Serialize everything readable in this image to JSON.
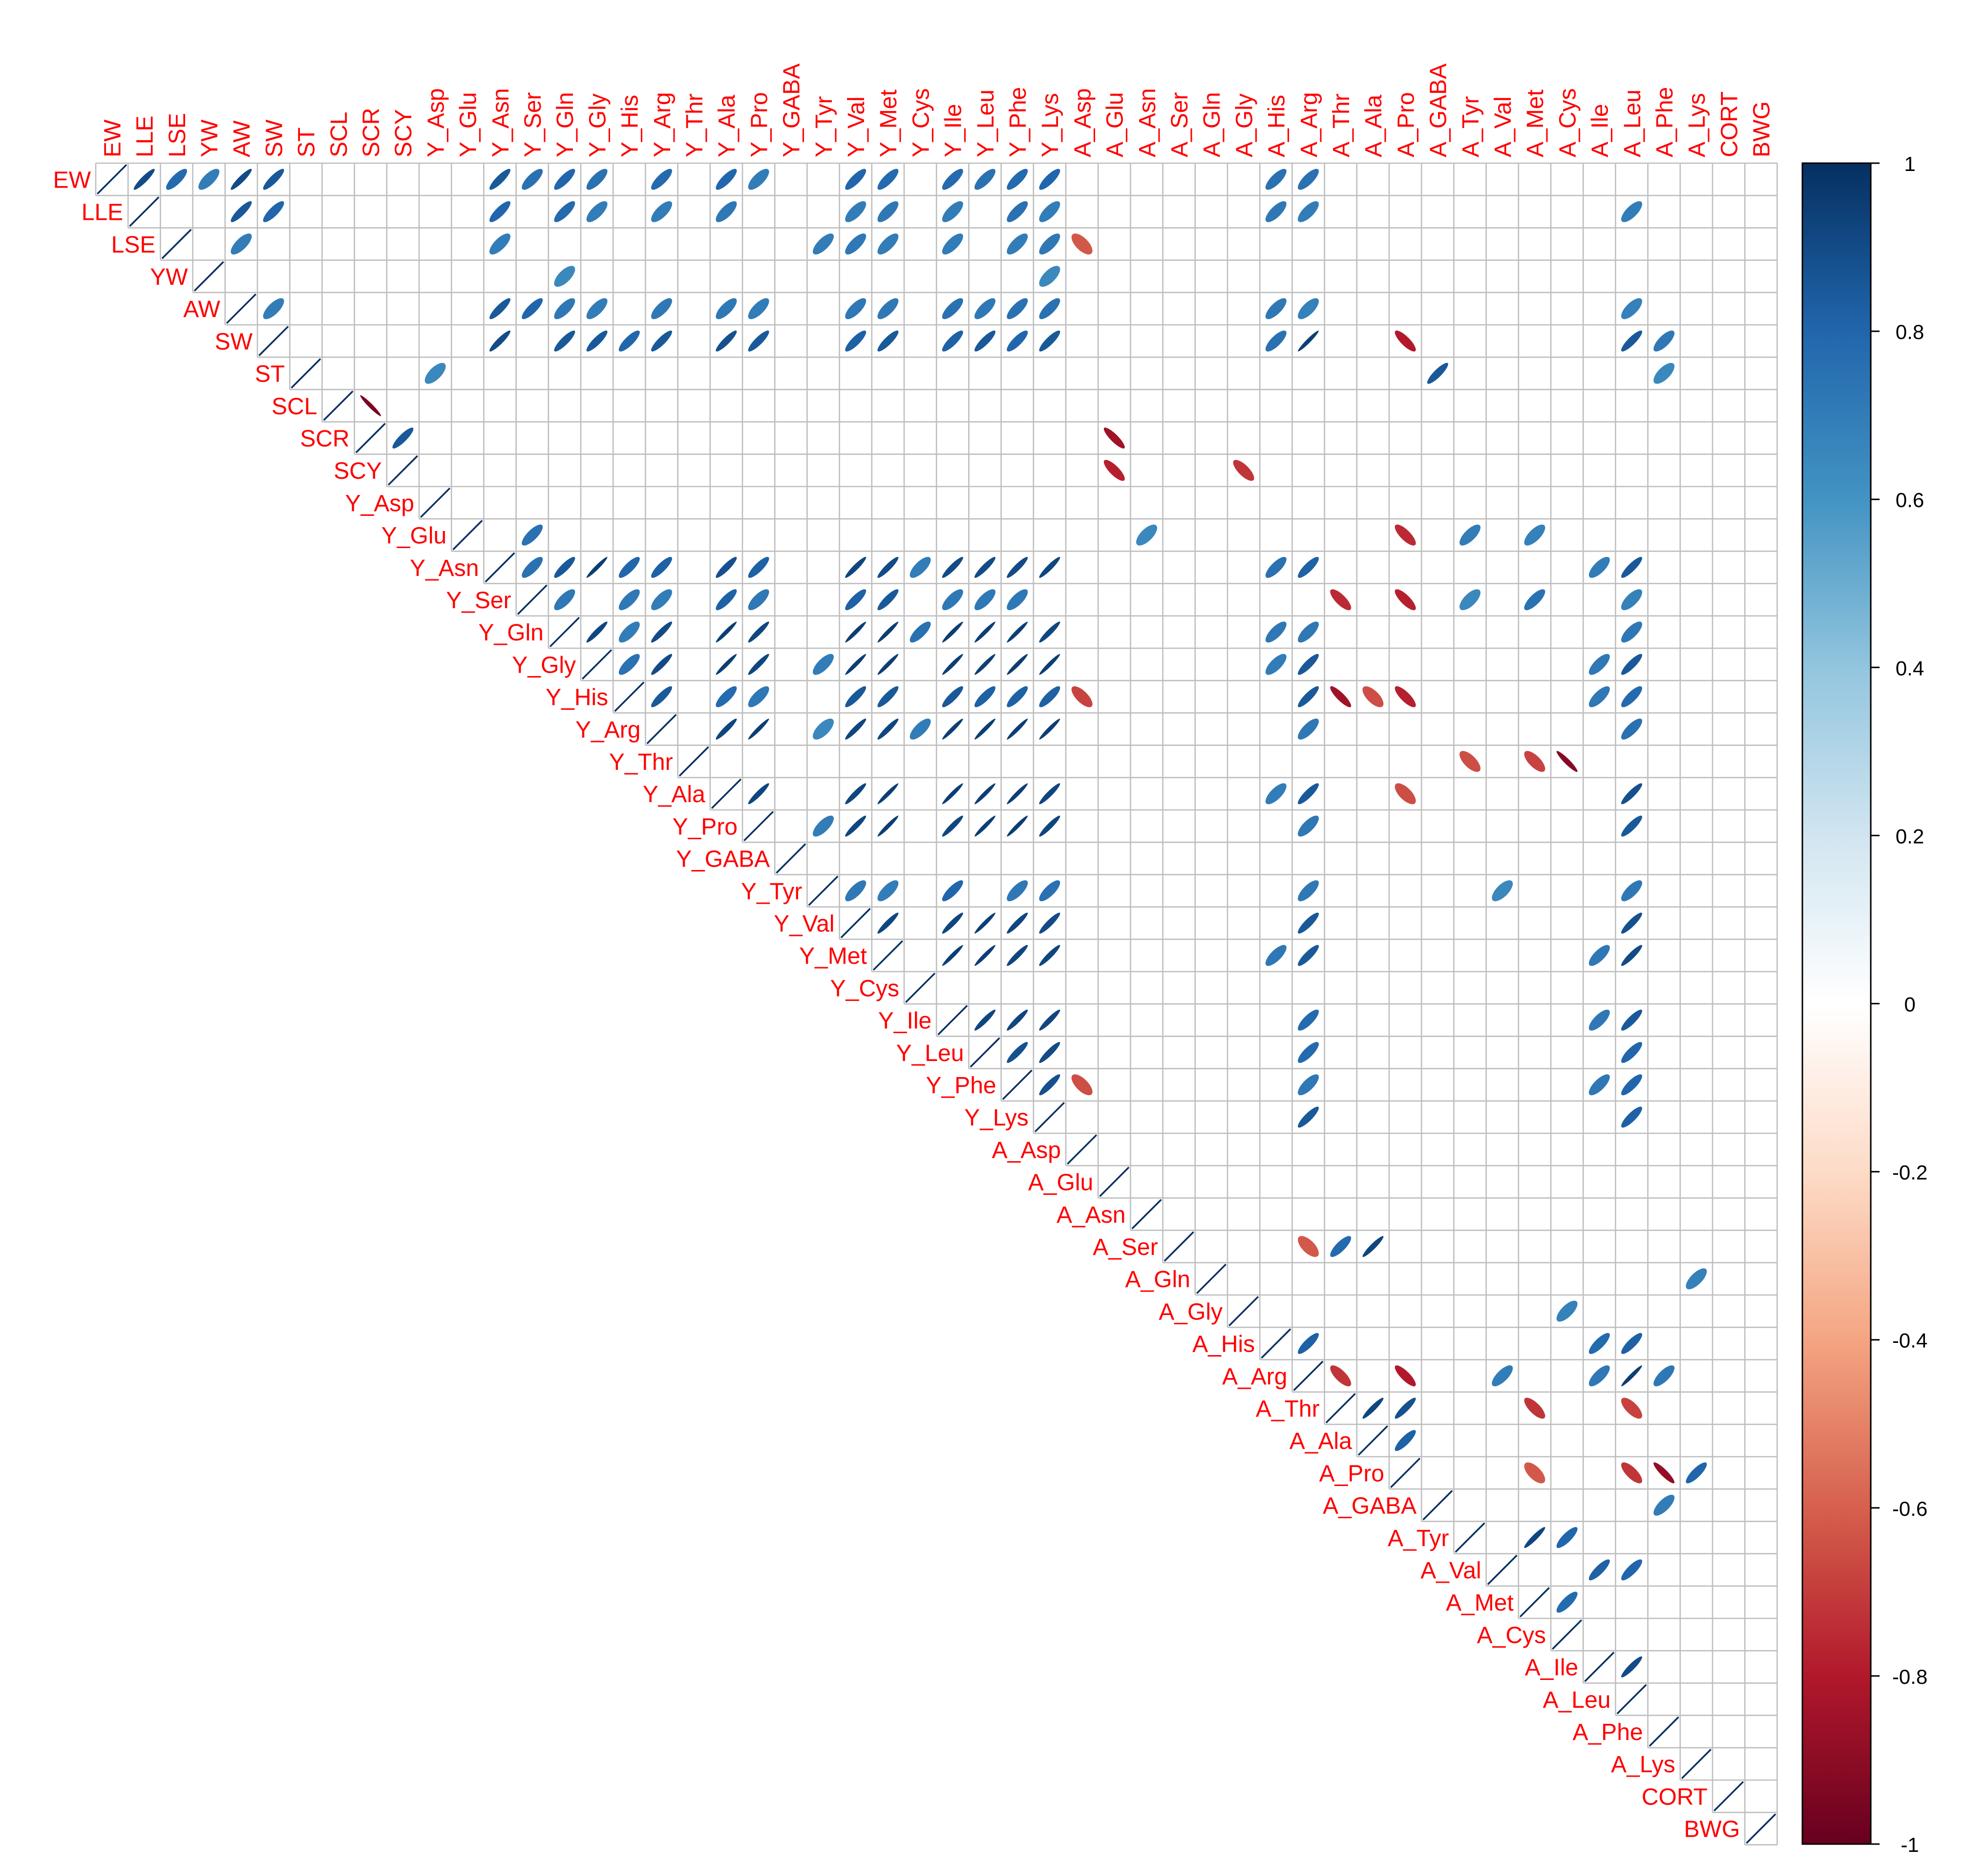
{
  "chart_data": {
    "type": "heatmap",
    "style": "correlation-matrix-ellipse-upper",
    "title": "",
    "labels": [
      "EW",
      "LLE",
      "LSE",
      "YW",
      "AW",
      "SW",
      "ST",
      "SCL",
      "SCR",
      "SCY",
      "Y_Asp",
      "Y_Glu",
      "Y_Asn",
      "Y_Ser",
      "Y_Gln",
      "Y_Gly",
      "Y_His",
      "Y_Arg",
      "Y_Thr",
      "Y_Ala",
      "Y_Pro",
      "Y_GABA",
      "Y_Tyr",
      "Y_Val",
      "Y_Met",
      "Y_Cys",
      "Y_Ile",
      "Y_Leu",
      "Y_Phe",
      "Y_Lys",
      "A_Asp",
      "A_Glu",
      "A_Asn",
      "A_Ser",
      "A_Gln",
      "A_Gly",
      "A_His",
      "A_Arg",
      "A_Thr",
      "A_Ala",
      "A_Pro",
      "A_GABA",
      "A_Tyr",
      "A_Val",
      "A_Met",
      "A_Cys",
      "A_Ile",
      "A_Leu",
      "A_Phe",
      "A_Lys",
      "CORT",
      "BWG"
    ],
    "colorbar": {
      "min": -1,
      "max": 1,
      "ticks": [
        1,
        0.8,
        0.6,
        0.4,
        0.2,
        0,
        -0.2,
        -0.4,
        -0.6,
        -0.8,
        -1
      ],
      "tick_labels": [
        "1",
        "0.8",
        "0.6",
        "0.4",
        "0.2",
        "0",
        "-0.2",
        "-0.4",
        "-0.6",
        "-0.8",
        "-1"
      ],
      "colors": [
        "#67001f",
        "#b2182b",
        "#d6604d",
        "#f4a582",
        "#fddbc7",
        "#ffffff",
        "#d1e5f0",
        "#92c5de",
        "#4393c3",
        "#2166ac",
        "#053061"
      ]
    },
    "label_color": "#ff0000",
    "grid_color": "#bebebe",
    "correlations": [
      [
        "EW",
        "LLE",
        0.9
      ],
      [
        "EW",
        "LSE",
        0.78
      ],
      [
        "EW",
        "YW",
        0.7
      ],
      [
        "EW",
        "AW",
        0.9
      ],
      [
        "EW",
        "SW",
        0.85
      ],
      [
        "EW",
        "Y_Asn",
        0.85
      ],
      [
        "EW",
        "Y_Ser",
        0.75
      ],
      [
        "EW",
        "Y_Gln",
        0.8
      ],
      [
        "EW",
        "Y_Gly",
        0.75
      ],
      [
        "EW",
        "Y_Arg",
        0.78
      ],
      [
        "EW",
        "Y_Ala",
        0.8
      ],
      [
        "EW",
        "Y_Pro",
        0.7
      ],
      [
        "EW",
        "Y_Val",
        0.8
      ],
      [
        "EW",
        "Y_Met",
        0.78
      ],
      [
        "EW",
        "Y_Ile",
        0.78
      ],
      [
        "EW",
        "Y_Leu",
        0.75
      ],
      [
        "EW",
        "Y_Phe",
        0.78
      ],
      [
        "EW",
        "Y_Lys",
        0.8
      ],
      [
        "EW",
        "A_His",
        0.75
      ],
      [
        "EW",
        "A_Arg",
        0.75
      ],
      [
        "LLE",
        "AW",
        0.85
      ],
      [
        "LLE",
        "SW",
        0.8
      ],
      [
        "LLE",
        "Y_Asn",
        0.8
      ],
      [
        "LLE",
        "Y_Gln",
        0.78
      ],
      [
        "LLE",
        "Y_Gly",
        0.7
      ],
      [
        "LLE",
        "Y_Arg",
        0.7
      ],
      [
        "LLE",
        "Y_Ala",
        0.72
      ],
      [
        "LLE",
        "Y_Val",
        0.7
      ],
      [
        "LLE",
        "Y_Met",
        0.72
      ],
      [
        "LLE",
        "Y_Ile",
        0.7
      ],
      [
        "LLE",
        "Y_Phe",
        0.75
      ],
      [
        "LLE",
        "Y_Lys",
        0.7
      ],
      [
        "LLE",
        "A_His",
        0.72
      ],
      [
        "LLE",
        "A_Arg",
        0.7
      ],
      [
        "LLE",
        "A_Leu",
        0.7
      ],
      [
        "LSE",
        "AW",
        0.7
      ],
      [
        "LSE",
        "Y_Asn",
        0.7
      ],
      [
        "LSE",
        "Y_Tyr",
        0.7
      ],
      [
        "LSE",
        "Y_Val",
        0.72
      ],
      [
        "LSE",
        "Y_Met",
        0.7
      ],
      [
        "LSE",
        "Y_Ile",
        0.7
      ],
      [
        "LSE",
        "Y_Phe",
        0.7
      ],
      [
        "LSE",
        "Y_Lys",
        0.72
      ],
      [
        "LSE",
        "A_Asp",
        -0.62
      ],
      [
        "YW",
        "Y_Gln",
        0.65
      ],
      [
        "YW",
        "Y_Lys",
        0.65
      ],
      [
        "AW",
        "SW",
        0.7
      ],
      [
        "AW",
        "Y_Asn",
        0.85
      ],
      [
        "AW",
        "Y_Ser",
        0.8
      ],
      [
        "AW",
        "Y_Gln",
        0.72
      ],
      [
        "AW",
        "Y_Gly",
        0.7
      ],
      [
        "AW",
        "Y_Arg",
        0.72
      ],
      [
        "AW",
        "Y_Ala",
        0.72
      ],
      [
        "AW",
        "Y_Pro",
        0.7
      ],
      [
        "AW",
        "Y_Val",
        0.72
      ],
      [
        "AW",
        "Y_Met",
        0.72
      ],
      [
        "AW",
        "Y_Ile",
        0.75
      ],
      [
        "AW",
        "Y_Leu",
        0.72
      ],
      [
        "AW",
        "Y_Phe",
        0.75
      ],
      [
        "AW",
        "Y_Lys",
        0.75
      ],
      [
        "AW",
        "A_His",
        0.72
      ],
      [
        "AW",
        "A_Arg",
        0.68
      ],
      [
        "AW",
        "A_Leu",
        0.68
      ],
      [
        "SW",
        "Y_Asn",
        0.9
      ],
      [
        "SW",
        "Y_Gln",
        0.85
      ],
      [
        "SW",
        "Y_Gly",
        0.85
      ],
      [
        "SW",
        "Y_His",
        0.8
      ],
      [
        "SW",
        "Y_Arg",
        0.85
      ],
      [
        "SW",
        "Y_Ala",
        0.88
      ],
      [
        "SW",
        "Y_Pro",
        0.85
      ],
      [
        "SW",
        "Y_Val",
        0.82
      ],
      [
        "SW",
        "Y_Met",
        0.85
      ],
      [
        "SW",
        "Y_Ile",
        0.82
      ],
      [
        "SW",
        "Y_Leu",
        0.85
      ],
      [
        "SW",
        "Y_Phe",
        0.8
      ],
      [
        "SW",
        "Y_Lys",
        0.85
      ],
      [
        "SW",
        "A_His",
        0.75
      ],
      [
        "SW",
        "A_Arg",
        0.95
      ],
      [
        "SW",
        "A_Pro",
        -0.8
      ],
      [
        "SW",
        "A_Leu",
        0.85
      ],
      [
        "SW",
        "A_Phe",
        0.72
      ],
      [
        "ST",
        "Y_Asp",
        0.65
      ],
      [
        "ST",
        "A_GABA",
        0.85
      ],
      [
        "ST",
        "A_Phe",
        0.65
      ],
      [
        "SCL",
        "SCR",
        -0.95
      ],
      [
        "SCR",
        "SCY",
        0.85
      ],
      [
        "SCR",
        "A_Glu",
        -0.85
      ],
      [
        "SCY",
        "A_Glu",
        -0.78
      ],
      [
        "SCY",
        "A_Gly",
        -0.72
      ],
      [
        "Y_Glu",
        "Y_Ser",
        0.75
      ],
      [
        "Y_Glu",
        "A_Asn",
        0.65
      ],
      [
        "Y_Glu",
        "A_Pro",
        -0.75
      ],
      [
        "Y_Glu",
        "A_Tyr",
        0.7
      ],
      [
        "Y_Glu",
        "A_Met",
        0.68
      ],
      [
        "Y_Asn",
        "Y_Ser",
        0.75
      ],
      [
        "Y_Asn",
        "Y_Gln",
        0.85
      ],
      [
        "Y_Asn",
        "Y_Gly",
        0.95
      ],
      [
        "Y_Asn",
        "Y_His",
        0.8
      ],
      [
        "Y_Asn",
        "Y_Arg",
        0.82
      ],
      [
        "Y_Asn",
        "Y_Ala",
        0.88
      ],
      [
        "Y_Asn",
        "Y_Pro",
        0.82
      ],
      [
        "Y_Asn",
        "Y_Val",
        0.92
      ],
      [
        "Y_Asn",
        "Y_Met",
        0.9
      ],
      [
        "Y_Asn",
        "Y_Cys",
        0.7
      ],
      [
        "Y_Asn",
        "Y_Ile",
        0.9
      ],
      [
        "Y_Asn",
        "Y_Leu",
        0.9
      ],
      [
        "Y_Asn",
        "Y_Phe",
        0.9
      ],
      [
        "Y_Asn",
        "Y_Lys",
        0.92
      ],
      [
        "Y_Asn",
        "A_His",
        0.75
      ],
      [
        "Y_Asn",
        "A_Arg",
        0.82
      ],
      [
        "Y_Asn",
        "A_Ile",
        0.7
      ],
      [
        "Y_Asn",
        "A_Leu",
        0.85
      ],
      [
        "Y_Ser",
        "Y_Gln",
        0.72
      ],
      [
        "Y_Ser",
        "Y_His",
        0.72
      ],
      [
        "Y_Ser",
        "Y_Arg",
        0.7
      ],
      [
        "Y_Ser",
        "Y_Ala",
        0.82
      ],
      [
        "Y_Ser",
        "Y_Pro",
        0.72
      ],
      [
        "Y_Ser",
        "Y_Val",
        0.82
      ],
      [
        "Y_Ser",
        "Y_Met",
        0.85
      ],
      [
        "Y_Ser",
        "Y_Ile",
        0.72
      ],
      [
        "Y_Ser",
        "Y_Leu",
        0.72
      ],
      [
        "Y_Ser",
        "Y_Phe",
        0.72
      ],
      [
        "Y_Ser",
        "A_Thr",
        -0.75
      ],
      [
        "Y_Ser",
        "A_Pro",
        -0.78
      ],
      [
        "Y_Ser",
        "A_Tyr",
        0.65
      ],
      [
        "Y_Ser",
        "A_Met",
        0.75
      ],
      [
        "Y_Ser",
        "A_Leu",
        0.68
      ],
      [
        "Y_Gln",
        "Y_Gly",
        0.92
      ],
      [
        "Y_Gln",
        "Y_His",
        0.7
      ],
      [
        "Y_Gln",
        "Y_Arg",
        0.9
      ],
      [
        "Y_Gln",
        "Y_Ala",
        0.95
      ],
      [
        "Y_Gln",
        "Y_Pro",
        0.92
      ],
      [
        "Y_Gln",
        "Y_Val",
        0.95
      ],
      [
        "Y_Gln",
        "Y_Met",
        0.95
      ],
      [
        "Y_Gln",
        "Y_Cys",
        0.75
      ],
      [
        "Y_Gln",
        "Y_Ile",
        0.95
      ],
      [
        "Y_Gln",
        "Y_Leu",
        0.95
      ],
      [
        "Y_Gln",
        "Y_Phe",
        0.95
      ],
      [
        "Y_Gln",
        "Y_Lys",
        0.92
      ],
      [
        "Y_Gln",
        "A_His",
        0.72
      ],
      [
        "Y_Gln",
        "A_Arg",
        0.72
      ],
      [
        "Y_Gln",
        "A_Leu",
        0.72
      ],
      [
        "Y_Gly",
        "Y_His",
        0.75
      ],
      [
        "Y_Gly",
        "Y_Arg",
        0.9
      ],
      [
        "Y_Gly",
        "Y_Ala",
        0.95
      ],
      [
        "Y_Gly",
        "Y_Pro",
        0.92
      ],
      [
        "Y_Gly",
        "Y_Tyr",
        0.7
      ],
      [
        "Y_Gly",
        "Y_Val",
        0.95
      ],
      [
        "Y_Gly",
        "Y_Met",
        0.95
      ],
      [
        "Y_Gly",
        "Y_Ile",
        0.95
      ],
      [
        "Y_Gly",
        "Y_Leu",
        0.95
      ],
      [
        "Y_Gly",
        "Y_Phe",
        0.95
      ],
      [
        "Y_Gly",
        "Y_Lys",
        0.95
      ],
      [
        "Y_Gly",
        "A_His",
        0.7
      ],
      [
        "Y_Gly",
        "A_Arg",
        0.85
      ],
      [
        "Y_Gly",
        "A_Ile",
        0.72
      ],
      [
        "Y_Gly",
        "A_Leu",
        0.85
      ],
      [
        "Y_His",
        "Y_Arg",
        0.85
      ],
      [
        "Y_His",
        "Y_Ala",
        0.78
      ],
      [
        "Y_His",
        "Y_Pro",
        0.72
      ],
      [
        "Y_His",
        "Y_Val",
        0.85
      ],
      [
        "Y_His",
        "Y_Met",
        0.85
      ],
      [
        "Y_His",
        "Y_Ile",
        0.85
      ],
      [
        "Y_His",
        "Y_Leu",
        0.82
      ],
      [
        "Y_His",
        "Y_Phe",
        0.82
      ],
      [
        "Y_His",
        "Y_Lys",
        0.82
      ],
      [
        "Y_His",
        "A_Asp",
        -0.68
      ],
      [
        "Y_His",
        "A_Arg",
        0.85
      ],
      [
        "Y_His",
        "A_Thr",
        -0.85
      ],
      [
        "Y_His",
        "A_Ala",
        -0.65
      ],
      [
        "Y_His",
        "A_Pro",
        -0.78
      ],
      [
        "Y_His",
        "A_Ile",
        0.72
      ],
      [
        "Y_His",
        "A_Leu",
        0.78
      ],
      [
        "Y_Arg",
        "Y_Ala",
        0.92
      ],
      [
        "Y_Arg",
        "Y_Pro",
        0.95
      ],
      [
        "Y_Arg",
        "Y_Tyr",
        0.65
      ],
      [
        "Y_Arg",
        "Y_Val",
        0.92
      ],
      [
        "Y_Arg",
        "Y_Met",
        0.92
      ],
      [
        "Y_Arg",
        "Y_Cys",
        0.7
      ],
      [
        "Y_Arg",
        "Y_Ile",
        0.95
      ],
      [
        "Y_Arg",
        "Y_Leu",
        0.95
      ],
      [
        "Y_Arg",
        "Y_Phe",
        0.95
      ],
      [
        "Y_Arg",
        "Y_Lys",
        0.95
      ],
      [
        "Y_Arg",
        "A_Arg",
        0.72
      ],
      [
        "Y_Arg",
        "A_Leu",
        0.75
      ],
      [
        "Y_Thr",
        "A_Tyr",
        -0.65
      ],
      [
        "Y_Thr",
        "A_Met",
        -0.68
      ],
      [
        "Y_Thr",
        "A_Cys",
        -0.92
      ],
      [
        "Y_Ala",
        "Y_Pro",
        0.92
      ],
      [
        "Y_Ala",
        "Y_Val",
        0.92
      ],
      [
        "Y_Ala",
        "Y_Met",
        0.95
      ],
      [
        "Y_Ala",
        "Y_Ile",
        0.95
      ],
      [
        "Y_Ala",
        "Y_Leu",
        0.95
      ],
      [
        "Y_Ala",
        "Y_Phe",
        0.95
      ],
      [
        "Y_Ala",
        "Y_Lys",
        0.92
      ],
      [
        "Y_Ala",
        "A_His",
        0.7
      ],
      [
        "Y_Ala",
        "A_Arg",
        0.85
      ],
      [
        "Y_Ala",
        "A_Pro",
        -0.65
      ],
      [
        "Y_Ala",
        "A_Leu",
        0.88
      ],
      [
        "Y_Pro",
        "Y_Tyr",
        0.7
      ],
      [
        "Y_Pro",
        "Y_Val",
        0.92
      ],
      [
        "Y_Pro",
        "Y_Met",
        0.95
      ],
      [
        "Y_Pro",
        "Y_Ile",
        0.92
      ],
      [
        "Y_Pro",
        "Y_Leu",
        0.95
      ],
      [
        "Y_Pro",
        "Y_Phe",
        0.95
      ],
      [
        "Y_Pro",
        "Y_Lys",
        0.92
      ],
      [
        "Y_Pro",
        "A_Arg",
        0.72
      ],
      [
        "Y_Pro",
        "A_Leu",
        0.85
      ],
      [
        "Y_Tyr",
        "Y_Val",
        0.72
      ],
      [
        "Y_Tyr",
        "Y_Met",
        0.7
      ],
      [
        "Y_Tyr",
        "Y_Ile",
        0.8
      ],
      [
        "Y_Tyr",
        "Y_Phe",
        0.72
      ],
      [
        "Y_Tyr",
        "Y_Lys",
        0.75
      ],
      [
        "Y_Tyr",
        "A_Arg",
        0.72
      ],
      [
        "Y_Tyr",
        "A_Val",
        0.65
      ],
      [
        "Y_Tyr",
        "A_Leu",
        0.72
      ],
      [
        "Y_Val",
        "Y_Met",
        0.92
      ],
      [
        "Y_Val",
        "Y_Ile",
        0.92
      ],
      [
        "Y_Val",
        "Y_Leu",
        0.95
      ],
      [
        "Y_Val",
        "Y_Phe",
        0.92
      ],
      [
        "Y_Val",
        "Y_Lys",
        0.9
      ],
      [
        "Y_Val",
        "A_Arg",
        0.85
      ],
      [
        "Y_Val",
        "A_Leu",
        0.88
      ],
      [
        "Y_Met",
        "Y_Ile",
        0.95
      ],
      [
        "Y_Met",
        "Y_Leu",
        0.95
      ],
      [
        "Y_Met",
        "Y_Phe",
        0.92
      ],
      [
        "Y_Met",
        "Y_Lys",
        0.92
      ],
      [
        "Y_Met",
        "A_His",
        0.72
      ],
      [
        "Y_Met",
        "A_Arg",
        0.85
      ],
      [
        "Y_Met",
        "A_Ile",
        0.72
      ],
      [
        "Y_Met",
        "A_Leu",
        0.9
      ],
      [
        "Y_Ile",
        "Y_Leu",
        0.92
      ],
      [
        "Y_Ile",
        "Y_Phe",
        0.92
      ],
      [
        "Y_Ile",
        "Y_Lys",
        0.92
      ],
      [
        "Y_Ile",
        "A_Arg",
        0.78
      ],
      [
        "Y_Ile",
        "A_Ile",
        0.72
      ],
      [
        "Y_Ile",
        "A_Leu",
        0.85
      ],
      [
        "Y_Leu",
        "Y_Phe",
        0.88
      ],
      [
        "Y_Leu",
        "Y_Lys",
        0.9
      ],
      [
        "Y_Leu",
        "A_Arg",
        0.78
      ],
      [
        "Y_Leu",
        "A_Leu",
        0.8
      ],
      [
        "Y_Phe",
        "Y_Lys",
        0.88
      ],
      [
        "Y_Phe",
        "A_Asp",
        -0.65
      ],
      [
        "Y_Phe",
        "A_Arg",
        0.72
      ],
      [
        "Y_Phe",
        "A_Ile",
        0.72
      ],
      [
        "Y_Phe",
        "A_Leu",
        0.8
      ],
      [
        "Y_Lys",
        "A_Arg",
        0.85
      ],
      [
        "Y_Lys",
        "A_Leu",
        0.82
      ],
      [
        "A_Ser",
        "A_Arg",
        -0.62
      ],
      [
        "A_Ser",
        "A_Thr",
        0.78
      ],
      [
        "A_Ser",
        "A_Ala",
        0.92
      ],
      [
        "A_Gln",
        "A_Lys",
        0.68
      ],
      [
        "A_Gly",
        "A_Cys",
        0.68
      ],
      [
        "A_His",
        "A_Arg",
        0.82
      ],
      [
        "A_His",
        "A_Ile",
        0.78
      ],
      [
        "A_His",
        "A_Leu",
        0.82
      ],
      [
        "A_Arg",
        "A_Thr",
        -0.72
      ],
      [
        "A_Arg",
        "A_Pro",
        -0.8
      ],
      [
        "A_Arg",
        "A_Val",
        0.7
      ],
      [
        "A_Arg",
        "A_Ile",
        0.72
      ],
      [
        "A_Arg",
        "A_Leu",
        0.95
      ],
      [
        "A_Arg",
        "A_Phe",
        0.72
      ],
      [
        "A_Thr",
        "A_Ala",
        0.92
      ],
      [
        "A_Thr",
        "A_Pro",
        0.88
      ],
      [
        "A_Thr",
        "A_Met",
        -0.72
      ],
      [
        "A_Thr",
        "A_Leu",
        -0.68
      ],
      [
        "A_Ala",
        "A_Pro",
        0.82
      ],
      [
        "A_Pro",
        "A_Met",
        -0.62
      ],
      [
        "A_Pro",
        "A_Leu",
        -0.72
      ],
      [
        "A_Pro",
        "A_Phe",
        -0.88
      ],
      [
        "A_Pro",
        "A_Lys",
        0.8
      ],
      [
        "A_GABA",
        "A_Phe",
        0.7
      ],
      [
        "A_Tyr",
        "A_Met",
        0.92
      ],
      [
        "A_Tyr",
        "A_Cys",
        0.8
      ],
      [
        "A_Val",
        "A_Ile",
        0.82
      ],
      [
        "A_Val",
        "A_Leu",
        0.8
      ],
      [
        "A_Met",
        "A_Cys",
        0.78
      ],
      [
        "A_Ile",
        "A_Leu",
        0.9
      ]
    ]
  }
}
